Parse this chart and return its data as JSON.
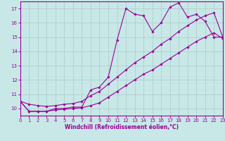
{
  "xlabel": "Windchill (Refroidissement éolien,°C)",
  "bg_color": "#c8e8e8",
  "line_color": "#990099",
  "grid_color": "#b0d0d0",
  "x_data": [
    0,
    1,
    2,
    3,
    4,
    5,
    6,
    7,
    8,
    9,
    10,
    11,
    12,
    13,
    14,
    15,
    16,
    17,
    18,
    19,
    20,
    21,
    22,
    23
  ],
  "y_zigzag": [
    10.5,
    9.8,
    9.8,
    9.8,
    10.0,
    10.0,
    10.1,
    10.1,
    11.3,
    11.5,
    12.2,
    14.8,
    17.0,
    16.6,
    16.5,
    15.4,
    16.0,
    17.1,
    17.4,
    16.4,
    16.6,
    16.1,
    15.0,
    15.0
  ],
  "y_upper": [
    10.5,
    10.3,
    10.2,
    10.15,
    10.2,
    10.3,
    10.35,
    10.5,
    10.9,
    11.2,
    11.7,
    12.2,
    12.7,
    13.2,
    13.6,
    14.0,
    14.5,
    14.9,
    15.4,
    15.8,
    16.2,
    16.5,
    16.7,
    15.0
  ],
  "y_lower": [
    10.5,
    9.8,
    9.8,
    9.8,
    9.9,
    9.95,
    10.0,
    10.05,
    10.2,
    10.4,
    10.8,
    11.2,
    11.6,
    12.0,
    12.4,
    12.7,
    13.1,
    13.5,
    13.9,
    14.3,
    14.7,
    15.0,
    15.3,
    14.9
  ],
  "xlim": [
    0,
    23
  ],
  "ylim": [
    9.5,
    17.5
  ],
  "yticks": [
    10,
    11,
    12,
    13,
    14,
    15,
    16,
    17
  ],
  "xticks": [
    0,
    1,
    2,
    3,
    4,
    5,
    6,
    7,
    8,
    9,
    10,
    11,
    12,
    13,
    14,
    15,
    16,
    17,
    18,
    19,
    20,
    21,
    22,
    23
  ]
}
